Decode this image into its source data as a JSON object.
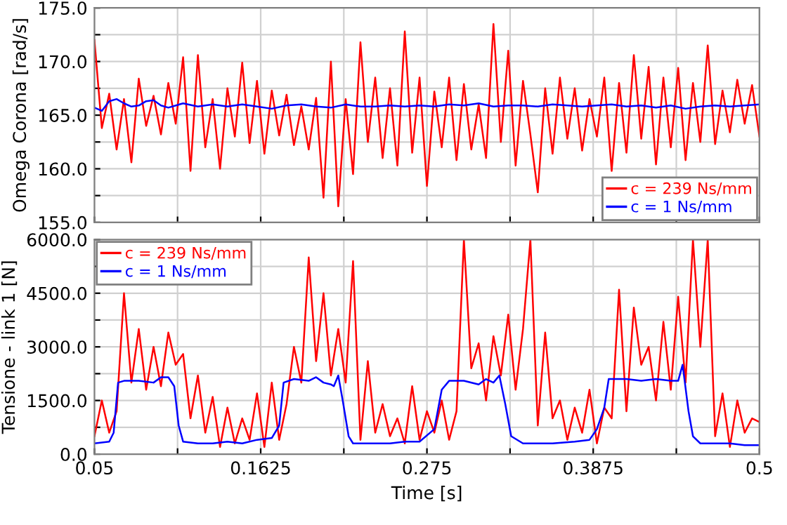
{
  "chart_data": [
    {
      "type": "line",
      "ylabel": "Omega Corona [rad/s]",
      "xlim": [
        0.05,
        0.5
      ],
      "xticks": [
        {
          "value": 0.05,
          "label": null
        },
        {
          "value": 0.10625,
          "label": null
        },
        {
          "value": 0.1625,
          "label": null
        },
        {
          "value": 0.21875,
          "label": null
        },
        {
          "value": 0.275,
          "label": null
        },
        {
          "value": 0.33125,
          "label": null
        },
        {
          "value": 0.3875,
          "label": null
        },
        {
          "value": 0.44375,
          "label": null
        },
        {
          "value": 0.5,
          "label": null
        }
      ],
      "ylim": [
        155,
        175
      ],
      "yticks": [
        {
          "value": 155,
          "label": "155.0"
        },
        {
          "value": 157.5,
          "label": null
        },
        {
          "value": 160,
          "label": "160.0"
        },
        {
          "value": 162.5,
          "label": null
        },
        {
          "value": 165,
          "label": "165.0"
        },
        {
          "value": 167.5,
          "label": null
        },
        {
          "value": 170,
          "label": "170.0"
        },
        {
          "value": 172.5,
          "label": null
        },
        {
          "value": 175,
          "label": "175.0"
        }
      ],
      "tick_labels": "y",
      "grid": true,
      "legend": "bottom right",
      "marker": "none",
      "line_style": "solid",
      "series": [
        {
          "name": "c = 239 Ns/mm",
          "color": "#ff0000",
          "x": [
            0.05,
            0.055,
            0.06,
            0.065,
            0.07,
            0.075,
            0.08,
            0.085,
            0.09,
            0.095,
            0.1,
            0.105,
            0.11,
            0.115,
            0.12,
            0.125,
            0.13,
            0.135,
            0.14,
            0.145,
            0.15,
            0.155,
            0.16,
            0.165,
            0.17,
            0.175,
            0.18,
            0.185,
            0.19,
            0.195,
            0.2,
            0.205,
            0.21,
            0.215,
            0.22,
            0.225,
            0.23,
            0.235,
            0.24,
            0.245,
            0.25,
            0.255,
            0.26,
            0.265,
            0.27,
            0.275,
            0.28,
            0.285,
            0.29,
            0.295,
            0.3,
            0.305,
            0.31,
            0.315,
            0.32,
            0.325,
            0.33,
            0.335,
            0.34,
            0.345,
            0.35,
            0.355,
            0.36,
            0.365,
            0.37,
            0.375,
            0.38,
            0.385,
            0.39,
            0.395,
            0.4,
            0.405,
            0.41,
            0.415,
            0.42,
            0.425,
            0.43,
            0.435,
            0.44,
            0.445,
            0.45,
            0.455,
            0.46,
            0.465,
            0.47,
            0.475,
            0.48,
            0.485,
            0.49,
            0.495,
            0.5
          ],
          "values": [
            172,
            163.8,
            167,
            161.8,
            166.5,
            160.6,
            168.4,
            164,
            166.8,
            163.2,
            168,
            164.2,
            170.4,
            159.8,
            170.6,
            162,
            166.5,
            160,
            167.5,
            163,
            169.9,
            162.4,
            168.2,
            161.4,
            167.3,
            163.1,
            166.9,
            162.2,
            165.8,
            161.8,
            166.6,
            157.3,
            170,
            156.5,
            166.5,
            159.5,
            171.8,
            162.5,
            168.5,
            161,
            167.5,
            160.3,
            172.8,
            161.5,
            168.5,
            158.4,
            167.2,
            162,
            168.5,
            160.8,
            167.9,
            161.8,
            166,
            161,
            173.5,
            162.5,
            171,
            160.3,
            168.2,
            163.2,
            157.8,
            167.5,
            161.4,
            168.5,
            162.8,
            167.5,
            161.7,
            166.5,
            163,
            168.5,
            159.8,
            168,
            161.5,
            170.6,
            162.8,
            169.5,
            160.4,
            168.5,
            162,
            169.4,
            160.8,
            168,
            162.5,
            171.5,
            162.3,
            167.3,
            163.4,
            168.3,
            164.2,
            167.8,
            163
          ]
        },
        {
          "name": "c = 1 Ns/mm",
          "color": "#0000ff",
          "x": [
            0.05,
            0.055,
            0.06,
            0.065,
            0.07,
            0.075,
            0.08,
            0.085,
            0.09,
            0.095,
            0.1,
            0.11,
            0.12,
            0.13,
            0.14,
            0.15,
            0.16,
            0.17,
            0.18,
            0.19,
            0.2,
            0.21,
            0.22,
            0.23,
            0.24,
            0.25,
            0.26,
            0.27,
            0.28,
            0.29,
            0.3,
            0.31,
            0.32,
            0.33,
            0.34,
            0.35,
            0.36,
            0.37,
            0.38,
            0.39,
            0.4,
            0.41,
            0.42,
            0.43,
            0.44,
            0.45,
            0.46,
            0.47,
            0.48,
            0.49,
            0.5
          ],
          "values": [
            165.7,
            165.4,
            166.3,
            166.5,
            166.1,
            165.8,
            165.9,
            166.3,
            166.4,
            165.9,
            165.7,
            166.1,
            165.8,
            166,
            165.8,
            166,
            165.8,
            165.6,
            165.9,
            166,
            165.8,
            165.7,
            166,
            165.8,
            165.8,
            165.9,
            165.8,
            165.9,
            165.8,
            166,
            165.9,
            166.1,
            165.8,
            165.9,
            165.9,
            165.8,
            166,
            165.9,
            165.8,
            165.9,
            166,
            165.8,
            165.9,
            165.7,
            165.9,
            165.6,
            165.8,
            165.9,
            165.8,
            165.9,
            166
          ]
        }
      ]
    },
    {
      "type": "line",
      "xlabel": "Time [s]",
      "ylabel": "Tensione - link 1 [N]",
      "xlim": [
        0.05,
        0.5
      ],
      "xticks": [
        {
          "value": 0.05,
          "label": "0.05"
        },
        {
          "value": 0.10625,
          "label": null
        },
        {
          "value": 0.1625,
          "label": "0.1625"
        },
        {
          "value": 0.21875,
          "label": null
        },
        {
          "value": 0.275,
          "label": "0.275"
        },
        {
          "value": 0.33125,
          "label": null
        },
        {
          "value": 0.3875,
          "label": "0.3875"
        },
        {
          "value": 0.44375,
          "label": null
        },
        {
          "value": 0.5,
          "label": "0.5"
        }
      ],
      "ylim": [
        0,
        6000
      ],
      "yticks": [
        {
          "value": 0,
          "label": "0.0"
        },
        {
          "value": 750,
          "label": null
        },
        {
          "value": 1500,
          "label": "1500.0"
        },
        {
          "value": 2250,
          "label": null
        },
        {
          "value": 3000,
          "label": "3000.0"
        },
        {
          "value": 3750,
          "label": null
        },
        {
          "value": 4500,
          "label": "4500.0"
        },
        {
          "value": 5250,
          "label": null
        },
        {
          "value": 6000,
          "label": "6000.0"
        }
      ],
      "grid": true,
      "legend": "top left",
      "marker": "none",
      "line_style": "solid",
      "series": [
        {
          "name": "c = 239 Ns/mm",
          "color": "#ff0000",
          "x": [
            0.05,
            0.055,
            0.06,
            0.065,
            0.07,
            0.075,
            0.08,
            0.085,
            0.09,
            0.095,
            0.1,
            0.105,
            0.11,
            0.115,
            0.12,
            0.125,
            0.13,
            0.135,
            0.14,
            0.145,
            0.15,
            0.155,
            0.16,
            0.165,
            0.17,
            0.175,
            0.18,
            0.185,
            0.19,
            0.195,
            0.2,
            0.205,
            0.21,
            0.215,
            0.22,
            0.225,
            0.23,
            0.235,
            0.24,
            0.245,
            0.25,
            0.255,
            0.26,
            0.265,
            0.27,
            0.275,
            0.28,
            0.285,
            0.29,
            0.295,
            0.3,
            0.305,
            0.31,
            0.315,
            0.32,
            0.325,
            0.33,
            0.335,
            0.34,
            0.345,
            0.35,
            0.355,
            0.36,
            0.365,
            0.37,
            0.375,
            0.38,
            0.385,
            0.39,
            0.395,
            0.4,
            0.405,
            0.41,
            0.415,
            0.42,
            0.425,
            0.43,
            0.435,
            0.44,
            0.445,
            0.45,
            0.455,
            0.46,
            0.465,
            0.47,
            0.475,
            0.48,
            0.485,
            0.49,
            0.495,
            0.5
          ],
          "values": [
            500,
            1500,
            600,
            1200,
            4500,
            2000,
            3500,
            1800,
            3000,
            1900,
            3400,
            2500,
            2800,
            1000,
            2200,
            600,
            1600,
            200,
            1300,
            300,
            1000,
            400,
            1700,
            200,
            2000,
            400,
            1400,
            3000,
            2000,
            5500,
            2600,
            4500,
            2200,
            3500,
            2000,
            5400,
            400,
            2600,
            600,
            1400,
            500,
            1000,
            300,
            1900,
            400,
            1200,
            600,
            1500,
            400,
            1200,
            6000,
            2400,
            3100,
            1500,
            3300,
            2200,
            3900,
            1800,
            3500,
            6000,
            800,
            3400,
            1000,
            1500,
            400,
            1300,
            600,
            1800,
            300,
            1300,
            1000,
            4600,
            1200,
            4100,
            2500,
            3000,
            1500,
            3700,
            1800,
            4400,
            2000,
            6000,
            3000,
            6000,
            500,
            1700,
            200,
            1500,
            600,
            1000,
            900
          ]
        },
        {
          "name": "c = 1 Ns/mm",
          "color": "#0000ff",
          "x": [
            0.05,
            0.06,
            0.063,
            0.066,
            0.07,
            0.08,
            0.09,
            0.095,
            0.1,
            0.104,
            0.107,
            0.11,
            0.12,
            0.13,
            0.14,
            0.15,
            0.16,
            0.17,
            0.175,
            0.178,
            0.185,
            0.195,
            0.2,
            0.205,
            0.21,
            0.212,
            0.215,
            0.218,
            0.222,
            0.225,
            0.235,
            0.25,
            0.26,
            0.27,
            0.28,
            0.285,
            0.29,
            0.3,
            0.31,
            0.315,
            0.32,
            0.324,
            0.328,
            0.332,
            0.34,
            0.36,
            0.375,
            0.385,
            0.39,
            0.395,
            0.398,
            0.41,
            0.42,
            0.43,
            0.44,
            0.445,
            0.448,
            0.452,
            0.455,
            0.46,
            0.48,
            0.49,
            0.5
          ],
          "values": [
            300,
            350,
            600,
            2000,
            2050,
            2050,
            2000,
            2150,
            2150,
            1900,
            800,
            350,
            300,
            300,
            350,
            300,
            400,
            450,
            800,
            2000,
            2100,
            2050,
            2150,
            2000,
            1950,
            1900,
            2200,
            1500,
            500,
            300,
            300,
            300,
            350,
            350,
            700,
            1800,
            2050,
            2050,
            1950,
            2100,
            2000,
            2200,
            1400,
            500,
            300,
            300,
            350,
            400,
            700,
            1300,
            2100,
            2100,
            2050,
            2100,
            2050,
            2050,
            2500,
            1200,
            500,
            300,
            300,
            250,
            250
          ]
        }
      ]
    }
  ]
}
